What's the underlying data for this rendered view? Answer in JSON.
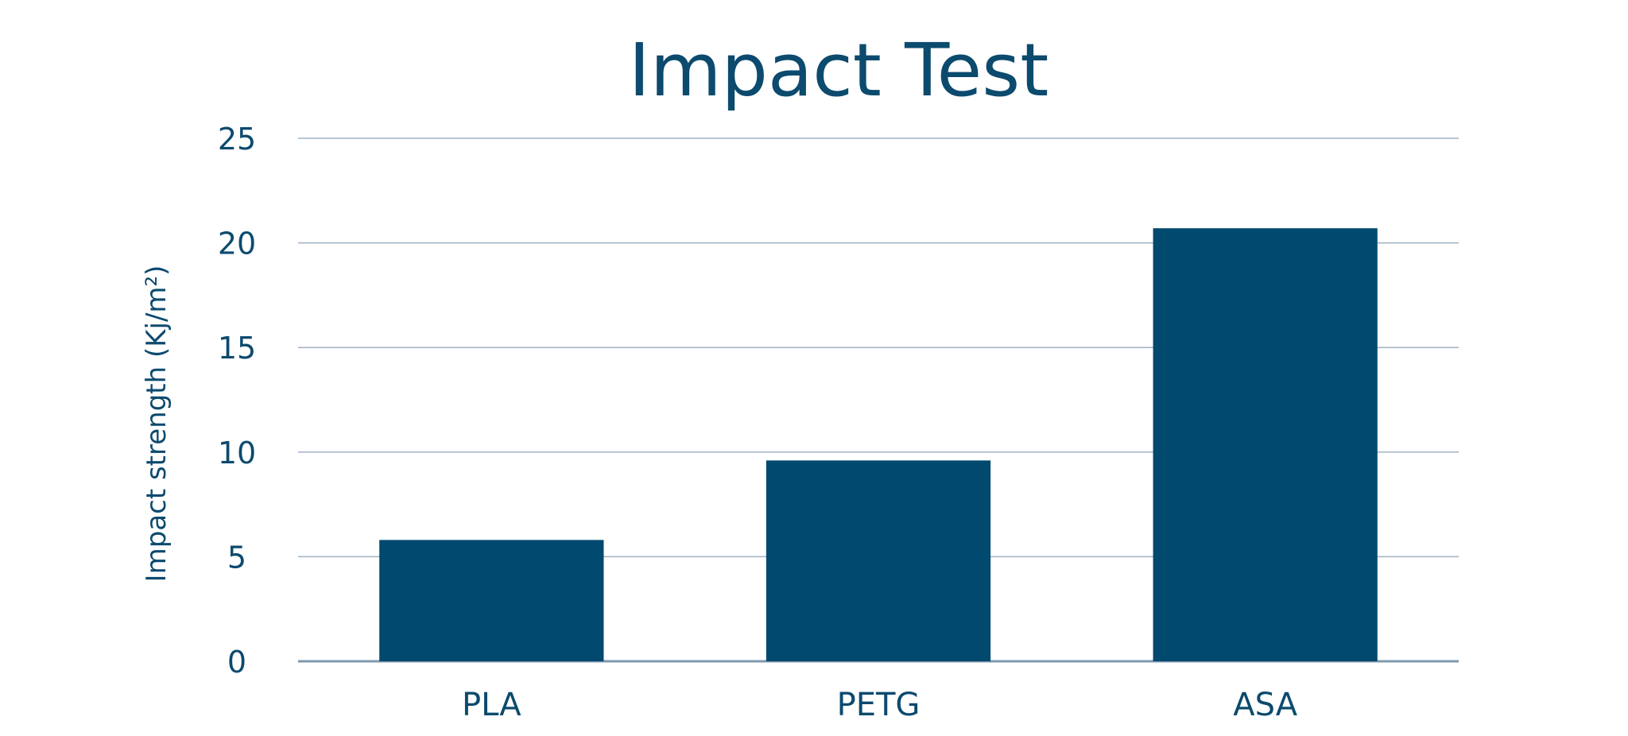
{
  "chart_data": {
    "type": "bar",
    "title": "Impact Test",
    "xlabel": "",
    "ylabel": "Impact strength (Kj/m²)",
    "categories": [
      "PLA",
      "PETG",
      "ASA"
    ],
    "values": [
      5.8,
      9.6,
      20.7
    ],
    "ylim": [
      0,
      25
    ],
    "yticks": [
      0,
      5,
      10,
      15,
      20,
      25
    ],
    "ytick_labels": [
      "0",
      "5",
      "10",
      "15",
      "20",
      "25"
    ],
    "grid": true,
    "legend": "none",
    "colors": {
      "bar": "#02496f",
      "text": "#0c4a6e",
      "grid": "#9fb2c3"
    }
  }
}
